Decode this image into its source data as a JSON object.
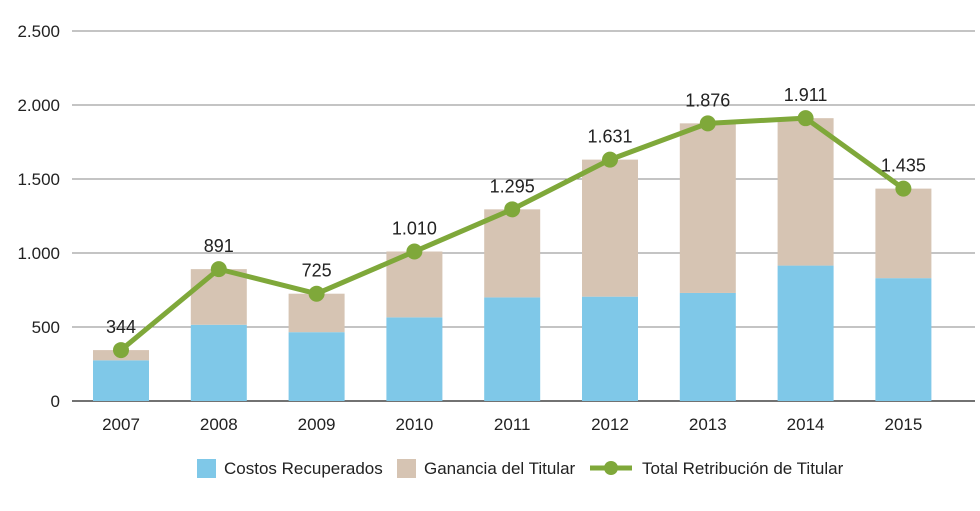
{
  "chart_data": {
    "type": "bar",
    "categories": [
      "2007",
      "2008",
      "2009",
      "2010",
      "2011",
      "2012",
      "2013",
      "2014",
      "2015"
    ],
    "series": [
      {
        "name": "Costos Recuperados",
        "type": "stacked-bar",
        "values": [
          275,
          515,
          465,
          565,
          700,
          705,
          730,
          915,
          830
        ],
        "color": "#7FC8E8"
      },
      {
        "name": "Ganancia del Titular",
        "type": "stacked-bar",
        "values": [
          69,
          376,
          260,
          445,
          595,
          926,
          1146,
          996,
          605
        ],
        "color": "#D6C4B3"
      },
      {
        "name": "Total Retribución de Titular",
        "type": "line",
        "values": [
          344,
          891,
          725,
          1010,
          1295,
          1631,
          1876,
          1911,
          1435
        ],
        "color": "#7FA83A"
      }
    ],
    "data_labels": [
      "344",
      "891",
      "725",
      "1.010",
      "1.295",
      "1.631",
      "1.876",
      "1.911",
      "1.435"
    ],
    "y_ticks": [
      {
        "value": 0,
        "label": "0"
      },
      {
        "value": 500,
        "label": "500"
      },
      {
        "value": 1000,
        "label": "1.000"
      },
      {
        "value": 1500,
        "label": "1.500"
      },
      {
        "value": 2000,
        "label": "2.000"
      },
      {
        "value": 2500,
        "label": "2.500"
      }
    ],
    "ylim": [
      0,
      2500
    ],
    "grid": true,
    "legend_position": "bottom"
  }
}
